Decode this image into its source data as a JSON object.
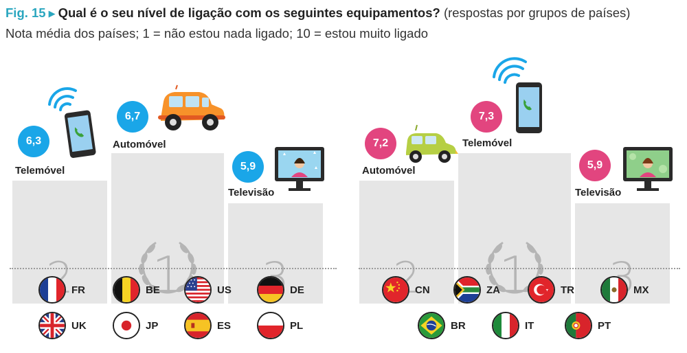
{
  "header": {
    "fig": "Fig. 15",
    "question": "Qual é o seu nível de ligação com os seguintes equipamentos?",
    "paren": "(respostas por grupos de países)",
    "subtitle": "Nota média dos países; 1 = não estou nada ligado; 10 = estou muito ligado"
  },
  "colors": {
    "accent": "#2aa6bf",
    "group1_badge": "#1aa6e8",
    "group2_badge": "#e2457f",
    "podium": "#e6e6e6",
    "rank_text": "#b5b5b5"
  },
  "chart_data": [
    {
      "type": "table",
      "group": "1",
      "ranking": [
        {
          "rank": "1",
          "item": "Automóvel",
          "value": "6,7",
          "icon": "orange-car-icon"
        },
        {
          "rank": "2",
          "item": "Telemóvel",
          "value": "6,3",
          "icon": "smartphone-icon"
        },
        {
          "rank": "3",
          "item": "Televisão",
          "value": "5,9",
          "icon": "television-icon"
        }
      ],
      "countries": [
        "FR",
        "BE",
        "US",
        "DE",
        "UK",
        "JP",
        "ES",
        "PL"
      ]
    },
    {
      "type": "table",
      "group": "2",
      "ranking": [
        {
          "rank": "1",
          "item": "Telemóvel",
          "value": "7,3",
          "icon": "smartphone-icon"
        },
        {
          "rank": "2",
          "item": "Automóvel",
          "value": "7,2",
          "icon": "green-car-icon"
        },
        {
          "rank": "3",
          "item": "Televisão",
          "value": "5,9",
          "icon": "television-icon"
        }
      ],
      "countries": [
        "CN",
        "ZA",
        "TR",
        "MX",
        "BR",
        "IT",
        "PT"
      ]
    }
  ]
}
